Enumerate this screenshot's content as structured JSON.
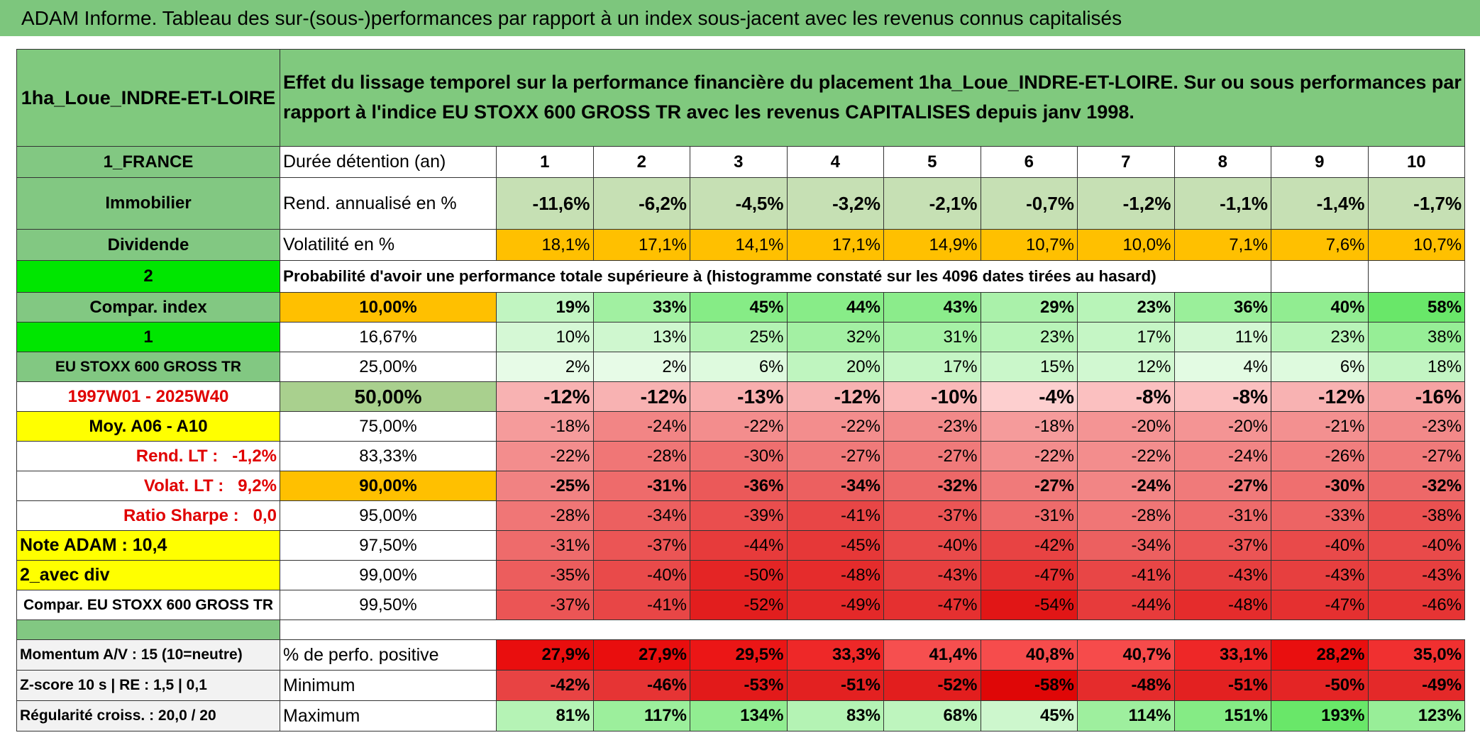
{
  "header": {
    "title": "ADAM Informe. Tableau des sur-(sous-)performances par rapport à un index sous-jacent avec les revenus connus capitalisés"
  },
  "table": {
    "corner": "1ha_Loue_INDRE-ET-LOIRE",
    "description": "Effet du lissage temporel sur la performance financière du placement 1ha_Loue_INDRE-ET-LOIRE. Sur ou sous performances par rapport à l'indice EU STOXX 600 GROSS TR avec les revenus CAPITALISES depuis janv 1998.",
    "rows": [
      [
        "1_FRANCE",
        "Durée détention (an)",
        "1",
        "2",
        "3",
        "4",
        "5",
        "6",
        "7",
        "8",
        "9",
        "10"
      ],
      [
        "Immobilier",
        "Rend. annualisé en %",
        "-11,6%",
        "-6,2%",
        "-4,5%",
        "-3,2%",
        "-2,1%",
        "-0,7%",
        "-1,2%",
        "-1,1%",
        "-1,4%",
        "-1,7%"
      ],
      [
        "Dividende",
        "Volatilité en %",
        "18,1%",
        "17,1%",
        "14,1%",
        "17,1%",
        "14,9%",
        "10,7%",
        "10,0%",
        "7,1%",
        "7,6%",
        "10,7%"
      ],
      [
        "2",
        "Probabilité d'avoir une performance totale supérieure à (histogramme constaté sur les 4096 dates tirées au hasard)"
      ],
      [
        "Compar. index",
        "10,00%",
        "19%",
        "33%",
        "45%",
        "44%",
        "43%",
        "29%",
        "23%",
        "36%",
        "40%",
        "58%"
      ],
      [
        "1",
        "16,67%",
        "10%",
        "13%",
        "25%",
        "32%",
        "31%",
        "23%",
        "17%",
        "11%",
        "23%",
        "38%"
      ],
      [
        "EU STOXX 600 GROSS TR",
        "25,00%",
        "2%",
        "2%",
        "6%",
        "20%",
        "17%",
        "15%",
        "12%",
        "4%",
        "6%",
        "18%"
      ],
      [
        "1997W01 - 2025W40",
        "50,00%",
        "-12%",
        "-12%",
        "-13%",
        "-12%",
        "-10%",
        "-4%",
        "-8%",
        "-8%",
        "-12%",
        "-16%"
      ],
      [
        "Moy. A06 - A10",
        "75,00%",
        "-18%",
        "-24%",
        "-22%",
        "-22%",
        "-23%",
        "-18%",
        "-20%",
        "-20%",
        "-21%",
        "-23%"
      ],
      [
        "Rend. LT :   -1,2%",
        "83,33%",
        "-22%",
        "-28%",
        "-30%",
        "-27%",
        "-27%",
        "-22%",
        "-22%",
        "-24%",
        "-26%",
        "-27%"
      ],
      [
        "Volat. LT :   9,2%",
        "90,00%",
        "-25%",
        "-31%",
        "-36%",
        "-34%",
        "-32%",
        "-27%",
        "-24%",
        "-27%",
        "-30%",
        "-32%"
      ],
      [
        "Ratio Sharpe :   0,0",
        "95,00%",
        "-28%",
        "-34%",
        "-39%",
        "-41%",
        "-37%",
        "-31%",
        "-28%",
        "-31%",
        "-33%",
        "-38%"
      ],
      [
        "Note ADAM : 10,4",
        "97,50%",
        "-31%",
        "-37%",
        "-44%",
        "-45%",
        "-40%",
        "-42%",
        "-34%",
        "-37%",
        "-40%",
        "-40%"
      ],
      [
        "2_avec div",
        "99,00%",
        "-35%",
        "-40%",
        "-50%",
        "-48%",
        "-43%",
        "-47%",
        "-41%",
        "-43%",
        "-43%",
        "-43%"
      ],
      [
        "Compar. EU STOXX 600 GROSS TR",
        "99,50%",
        "-37%",
        "-41%",
        "-52%",
        "-49%",
        "-47%",
        "-54%",
        "-44%",
        "-48%",
        "-47%",
        "-46%"
      ],
      [
        "Momentum A/V : 15 (10=neutre)",
        "% de perfo. positive",
        "27,9%",
        "27,9%",
        "29,5%",
        "33,3%",
        "41,4%",
        "40,8%",
        "40,7%",
        "33,1%",
        "28,2%",
        "35,0%"
      ],
      [
        "Z-score 10 s | RE : 1,5 | 0,1",
        "Minimum",
        "-42%",
        "-46%",
        "-53%",
        "-51%",
        "-52%",
        "-58%",
        "-48%",
        "-51%",
        "-50%",
        "-49%"
      ],
      [
        "Régularité croiss. : 20,0 / 20",
        "Maximum",
        "81%",
        "117%",
        "134%",
        "83%",
        "68%",
        "45%",
        "114%",
        "151%",
        "193%",
        "123%"
      ]
    ]
  }
}
